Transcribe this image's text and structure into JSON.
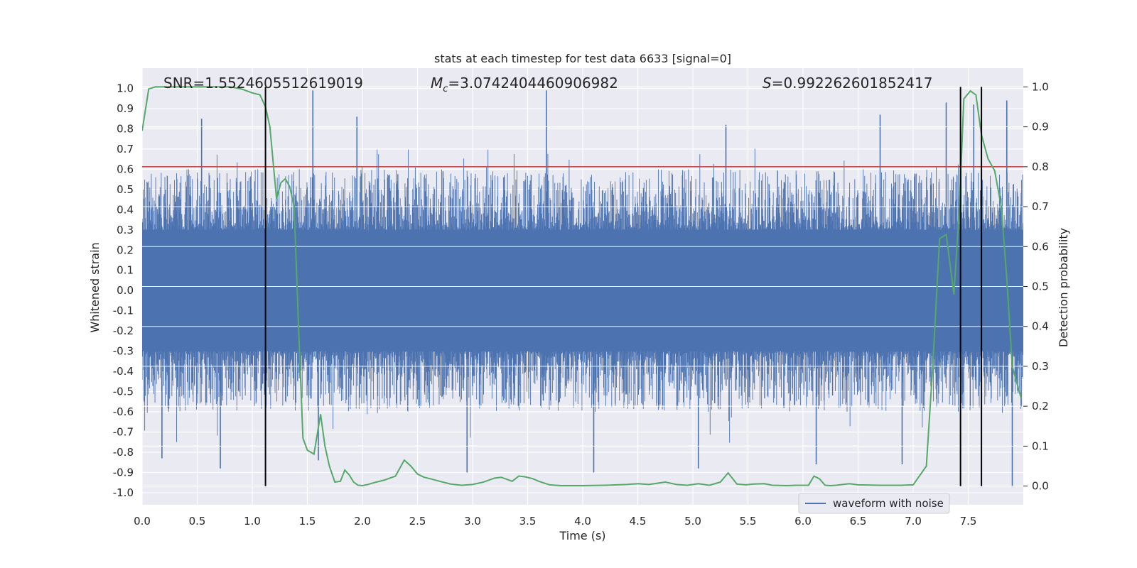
{
  "chart_data": {
    "type": "line",
    "title": "stats at each timestep for test data 6633 [signal=0]",
    "xlabel": "Time (s)",
    "ylabel": "Whitened strain",
    "ylabel_right": "Detection probability",
    "xlim": [
      0,
      8
    ],
    "ylim": [
      -1.06,
      1.1
    ],
    "ylim_right": [
      -0.047,
      1.047
    ],
    "x_ticks": [
      0.0,
      0.5,
      1.0,
      1.5,
      2.0,
      2.5,
      3.0,
      3.5,
      4.0,
      4.5,
      5.0,
      5.5,
      6.0,
      6.5,
      7.0,
      7.5
    ],
    "x_tick_labels": [
      "0.0",
      "0.5",
      "1.0",
      "1.5",
      "2.0",
      "2.5",
      "3.0",
      "3.5",
      "4.0",
      "4.5",
      "5.0",
      "5.5",
      "6.0",
      "6.5",
      "7.0",
      "7.5"
    ],
    "y_ticks": [
      1.0,
      0.9,
      0.8,
      0.7,
      0.6,
      0.5,
      0.4,
      0.3,
      0.2,
      0.1,
      0.0,
      -0.1,
      -0.2,
      -0.3,
      -0.4,
      -0.5,
      -0.6,
      -0.7,
      -0.8,
      -0.9,
      -1.0
    ],
    "y_tick_labels": [
      "1.0",
      "0.9",
      "0.8",
      "0.7",
      "0.6",
      "0.5",
      "0.4",
      "0.3",
      "0.2",
      "0.1",
      "0.0",
      "-0.1",
      "-0.2",
      "-0.3",
      "-0.4",
      "-0.5",
      "-0.6",
      "-0.7",
      "-0.8",
      "-0.9",
      "-1.0"
    ],
    "y_right_ticks": [
      1.0,
      0.9,
      0.8,
      0.7,
      0.6,
      0.5,
      0.4,
      0.3,
      0.2,
      0.1,
      0.0
    ],
    "y_right_tick_labels": [
      "1.0",
      "0.9",
      "0.8",
      "0.7",
      "0.6",
      "0.5",
      "0.4",
      "0.3",
      "0.2",
      "0.1",
      "0.0"
    ],
    "annotations": {
      "snr": "SNR=1.5524605512619019",
      "mc_symbol": "M",
      "mc_subscript": "c",
      "mc_value": "=3.0742404460906982",
      "s_symbol": "S",
      "s_value": "=0.992262601852417"
    },
    "threshold": 0.8,
    "vertical_markers": [
      1.12,
      7.43,
      7.62
    ],
    "series": [
      {
        "name": "waveform with noise",
        "color": "#4c72b0",
        "description_only_in_legend": true,
        "envelope_upper": 0.55,
        "envelope_lower": -0.55,
        "peaks": [
          {
            "x": 0.54,
            "y": 0.85
          },
          {
            "x": 1.55,
            "y": 0.99
          },
          {
            "x": 3.67,
            "y": 0.99
          },
          {
            "x": 7.3,
            "y": 0.93
          },
          {
            "x": 7.85,
            "y": 0.94
          },
          {
            "x": 7.55,
            "y": 0.92
          },
          {
            "x": 1.95,
            "y": 0.86
          },
          {
            "x": 5.3,
            "y": 0.82
          },
          {
            "x": 6.7,
            "y": 0.87
          },
          {
            "x": 0.71,
            "y": -0.88
          },
          {
            "x": 1.6,
            "y": -0.84
          },
          {
            "x": 2.95,
            "y": -0.9
          },
          {
            "x": 4.1,
            "y": -0.9
          },
          {
            "x": 5.05,
            "y": -0.88
          },
          {
            "x": 7.9,
            "y": -0.97
          },
          {
            "x": 0.18,
            "y": -0.83
          },
          {
            "x": 6.9,
            "y": -0.86
          },
          {
            "x": 6.12,
            "y": -0.86
          }
        ]
      },
      {
        "name": "detection probability",
        "color": "#55a868",
        "axis": "right",
        "x": [
          0.0,
          0.06,
          0.12,
          0.2,
          0.5,
          0.8,
          0.9,
          1.0,
          1.07,
          1.12,
          1.16,
          1.22,
          1.26,
          1.3,
          1.34,
          1.38,
          1.42,
          1.46,
          1.5,
          1.56,
          1.62,
          1.66,
          1.7,
          1.75,
          1.8,
          1.84,
          1.88,
          1.92,
          1.96,
          2.0,
          2.05,
          2.1,
          2.2,
          2.3,
          2.38,
          2.44,
          2.5,
          2.56,
          2.62,
          2.7,
          2.8,
          2.9,
          3.0,
          3.1,
          3.2,
          3.26,
          3.3,
          3.36,
          3.42,
          3.48,
          3.55,
          3.6,
          3.7,
          3.8,
          4.0,
          4.2,
          4.4,
          4.5,
          4.6,
          4.7,
          4.75,
          4.85,
          4.95,
          5.05,
          5.15,
          5.25,
          5.32,
          5.4,
          5.48,
          5.55,
          5.65,
          5.72,
          5.85,
          5.95,
          6.05,
          6.1,
          6.15,
          6.2,
          6.25,
          6.3,
          6.42,
          6.5,
          6.7,
          6.9,
          7.0,
          7.12,
          7.18,
          7.24,
          7.3,
          7.37,
          7.42,
          7.46,
          7.52,
          7.57,
          7.62,
          7.68,
          7.74,
          7.8,
          7.85,
          7.9,
          7.95,
          7.98
        ],
        "values": [
          0.89,
          0.995,
          1.0,
          1.0,
          1.0,
          1.0,
          0.995,
          0.985,
          0.98,
          0.95,
          0.9,
          0.72,
          0.76,
          0.77,
          0.75,
          0.7,
          0.4,
          0.12,
          0.09,
          0.08,
          0.18,
          0.1,
          0.05,
          0.01,
          0.012,
          0.04,
          0.028,
          0.01,
          0.002,
          0.001,
          0.004,
          0.008,
          0.015,
          0.025,
          0.065,
          0.05,
          0.03,
          0.022,
          0.018,
          0.012,
          0.005,
          0.002,
          0.004,
          0.01,
          0.02,
          0.022,
          0.018,
          0.012,
          0.025,
          0.023,
          0.018,
          0.012,
          0.003,
          0.001,
          0.001,
          0.002,
          0.004,
          0.006,
          0.004,
          0.008,
          0.01,
          0.004,
          0.002,
          0.006,
          0.002,
          0.01,
          0.033,
          0.005,
          0.003,
          0.005,
          0.006,
          0.002,
          0.001,
          0.002,
          0.002,
          0.025,
          0.018,
          0.002,
          0.001,
          0.002,
          0.006,
          0.003,
          0.002,
          0.002,
          0.003,
          0.05,
          0.31,
          0.62,
          0.63,
          0.48,
          0.7,
          0.97,
          0.99,
          0.98,
          0.88,
          0.82,
          0.79,
          0.7,
          0.52,
          0.3,
          0.25,
          0.22
        ]
      },
      {
        "name": "threshold",
        "color": "#c44e52",
        "value": 0.8
      }
    ],
    "legend": {
      "placement": "lower-right",
      "entries": [
        "waveform with noise"
      ]
    },
    "grid": true
  },
  "colors": {
    "axes_bg": "#eaeaf2",
    "grid": "#ffffff",
    "waveform": "#4c72b0",
    "probability": "#55a868",
    "threshold": "#c44e52",
    "markers": "#000000"
  }
}
